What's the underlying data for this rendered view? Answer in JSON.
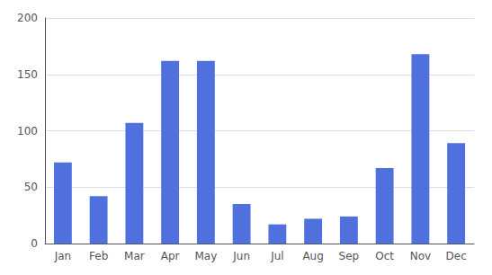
{
  "chart_data": {
    "type": "bar",
    "categories": [
      "Jan",
      "Feb",
      "Mar",
      "Apr",
      "May",
      "Jun",
      "Jul",
      "Aug",
      "Sep",
      "Oct",
      "Nov",
      "Dec"
    ],
    "values": [
      72,
      42,
      107,
      162,
      162,
      35,
      17,
      22,
      24,
      67,
      168,
      89
    ],
    "ylim": [
      0,
      200
    ],
    "yticks": [
      0,
      50,
      100,
      150,
      200
    ],
    "grid": true
  }
}
